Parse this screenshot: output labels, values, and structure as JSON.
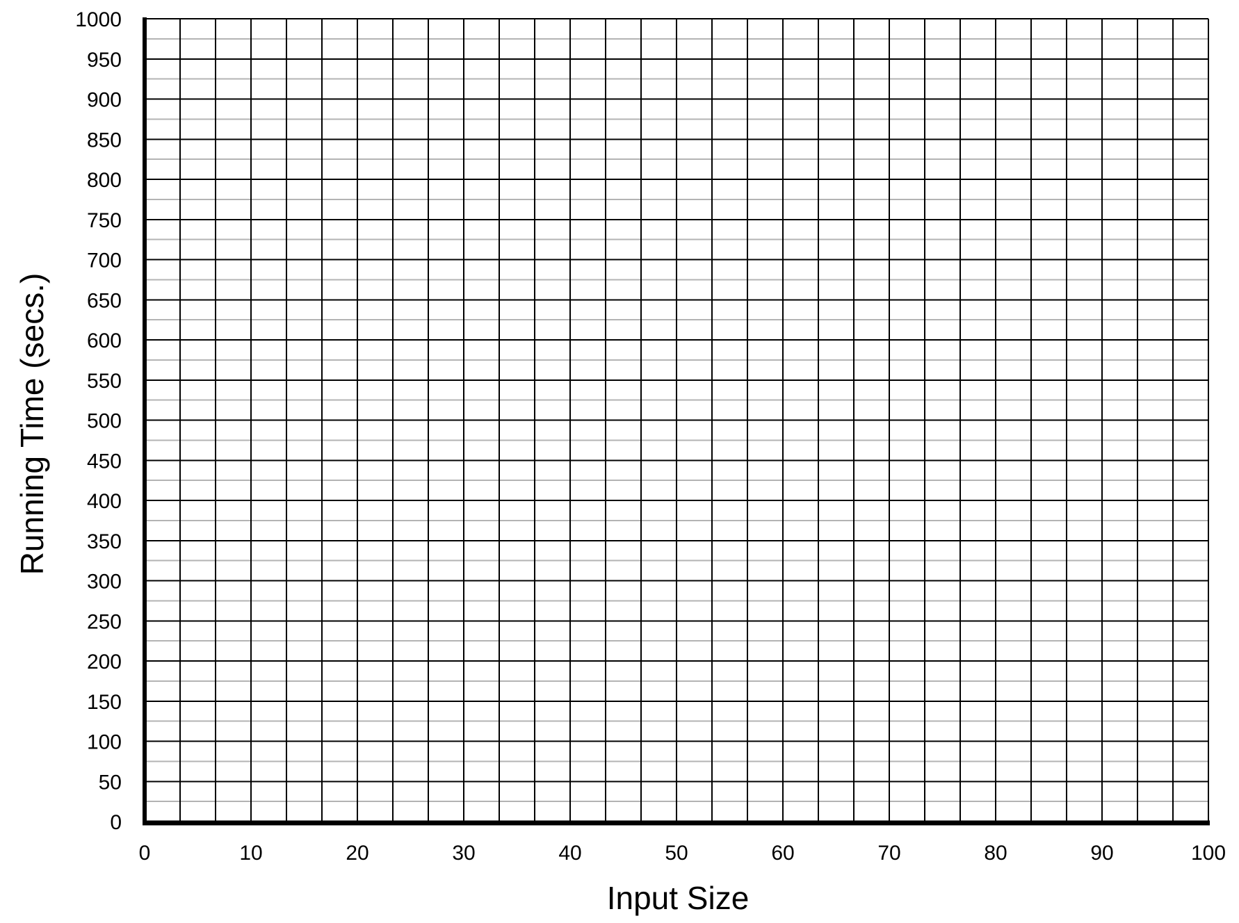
{
  "chart_data": {
    "type": "line",
    "title": "",
    "xlabel": "Input Size",
    "ylabel": "Running Time (secs.)",
    "xlim": [
      0,
      100
    ],
    "ylim": [
      0,
      1000
    ],
    "x_ticks": [
      "0",
      "10",
      "20",
      "30",
      "40",
      "50",
      "60",
      "70",
      "80",
      "90",
      "100"
    ],
    "y_ticks": [
      "0",
      "50",
      "100",
      "150",
      "200",
      "250",
      "300",
      "350",
      "400",
      "450",
      "500",
      "550",
      "600",
      "650",
      "700",
      "750",
      "800",
      "850",
      "900",
      "950",
      "1000"
    ],
    "x_minor_step": 3.333,
    "y_minor_step": 25,
    "grid": true,
    "series": [],
    "colors": {
      "major_grid": "#000000",
      "minor_grid": "#b3b3b3",
      "axis": "#000000",
      "background": "#ffffff"
    }
  }
}
